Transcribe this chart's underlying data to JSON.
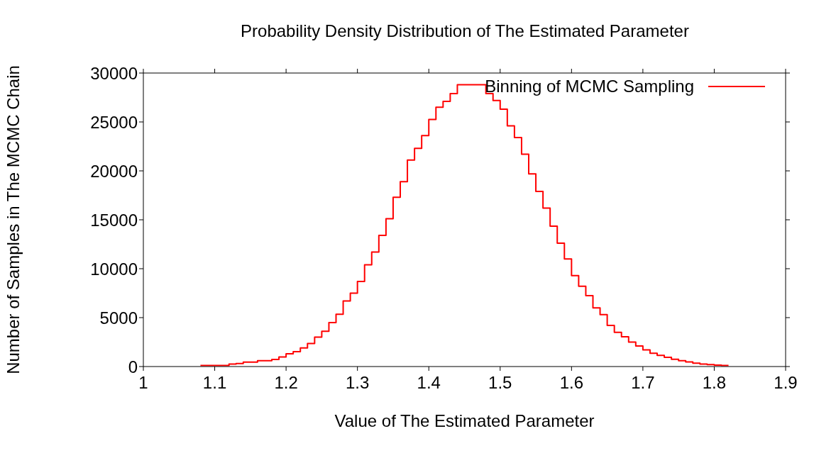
{
  "chart_data": {
    "type": "histogram",
    "title": "Probability Density Distribution of The Estimated Parameter",
    "xlabel": "Value of The Estimated Parameter",
    "ylabel": "Number of Samples in The MCMC Chain",
    "bins": [
      1.08,
      1.09,
      1.1,
      1.11,
      1.12,
      1.13,
      1.14,
      1.15,
      1.16,
      1.17,
      1.18,
      1.19,
      1.2,
      1.21,
      1.22,
      1.23,
      1.24,
      1.25,
      1.26,
      1.27,
      1.28,
      1.29,
      1.3,
      1.31,
      1.32,
      1.33,
      1.34,
      1.35,
      1.36,
      1.37,
      1.38,
      1.39,
      1.4,
      1.41,
      1.42,
      1.43,
      1.44,
      1.45,
      1.46,
      1.47,
      1.48,
      1.49,
      1.5,
      1.51,
      1.52,
      1.53,
      1.54,
      1.55,
      1.56,
      1.57,
      1.58,
      1.59,
      1.6,
      1.61,
      1.62,
      1.63,
      1.64,
      1.65,
      1.66,
      1.67,
      1.68,
      1.69,
      1.7,
      1.71,
      1.72,
      1.73,
      1.74,
      1.75,
      1.76,
      1.77,
      1.78,
      1.79,
      1.8,
      1.81,
      1.82
    ],
    "series": [
      {
        "name": "Binning of MCMC Sampling",
        "color": "#ff0000",
        "values": [
          100,
          100,
          100,
          100,
          250,
          300,
          450,
          450,
          600,
          600,
          720,
          970,
          1300,
          1530,
          1900,
          2350,
          3000,
          3600,
          4500,
          5350,
          6700,
          7500,
          8700,
          10400,
          11700,
          13400,
          15100,
          17300,
          18900,
          21100,
          22300,
          23600,
          25250,
          26500,
          27100,
          27900,
          28800,
          28800,
          28800,
          28800,
          27900,
          27200,
          26300,
          24600,
          23400,
          21700,
          19700,
          17900,
          16200,
          14350,
          12600,
          11000,
          9300,
          8200,
          7250,
          6000,
          5300,
          4200,
          3500,
          3050,
          2500,
          2100,
          1700,
          1350,
          1150,
          950,
          750,
          600,
          480,
          340,
          250,
          200,
          150,
          100
        ]
      }
    ],
    "xlim": [
      1,
      1.9
    ],
    "xticks": [
      1,
      1.1,
      1.2,
      1.3,
      1.4,
      1.5,
      1.6,
      1.7,
      1.8,
      1.9
    ],
    "ylim": [
      0,
      30000
    ],
    "yticks": [
      0,
      5000,
      10000,
      15000,
      20000,
      25000,
      30000
    ],
    "legend": "top right"
  }
}
